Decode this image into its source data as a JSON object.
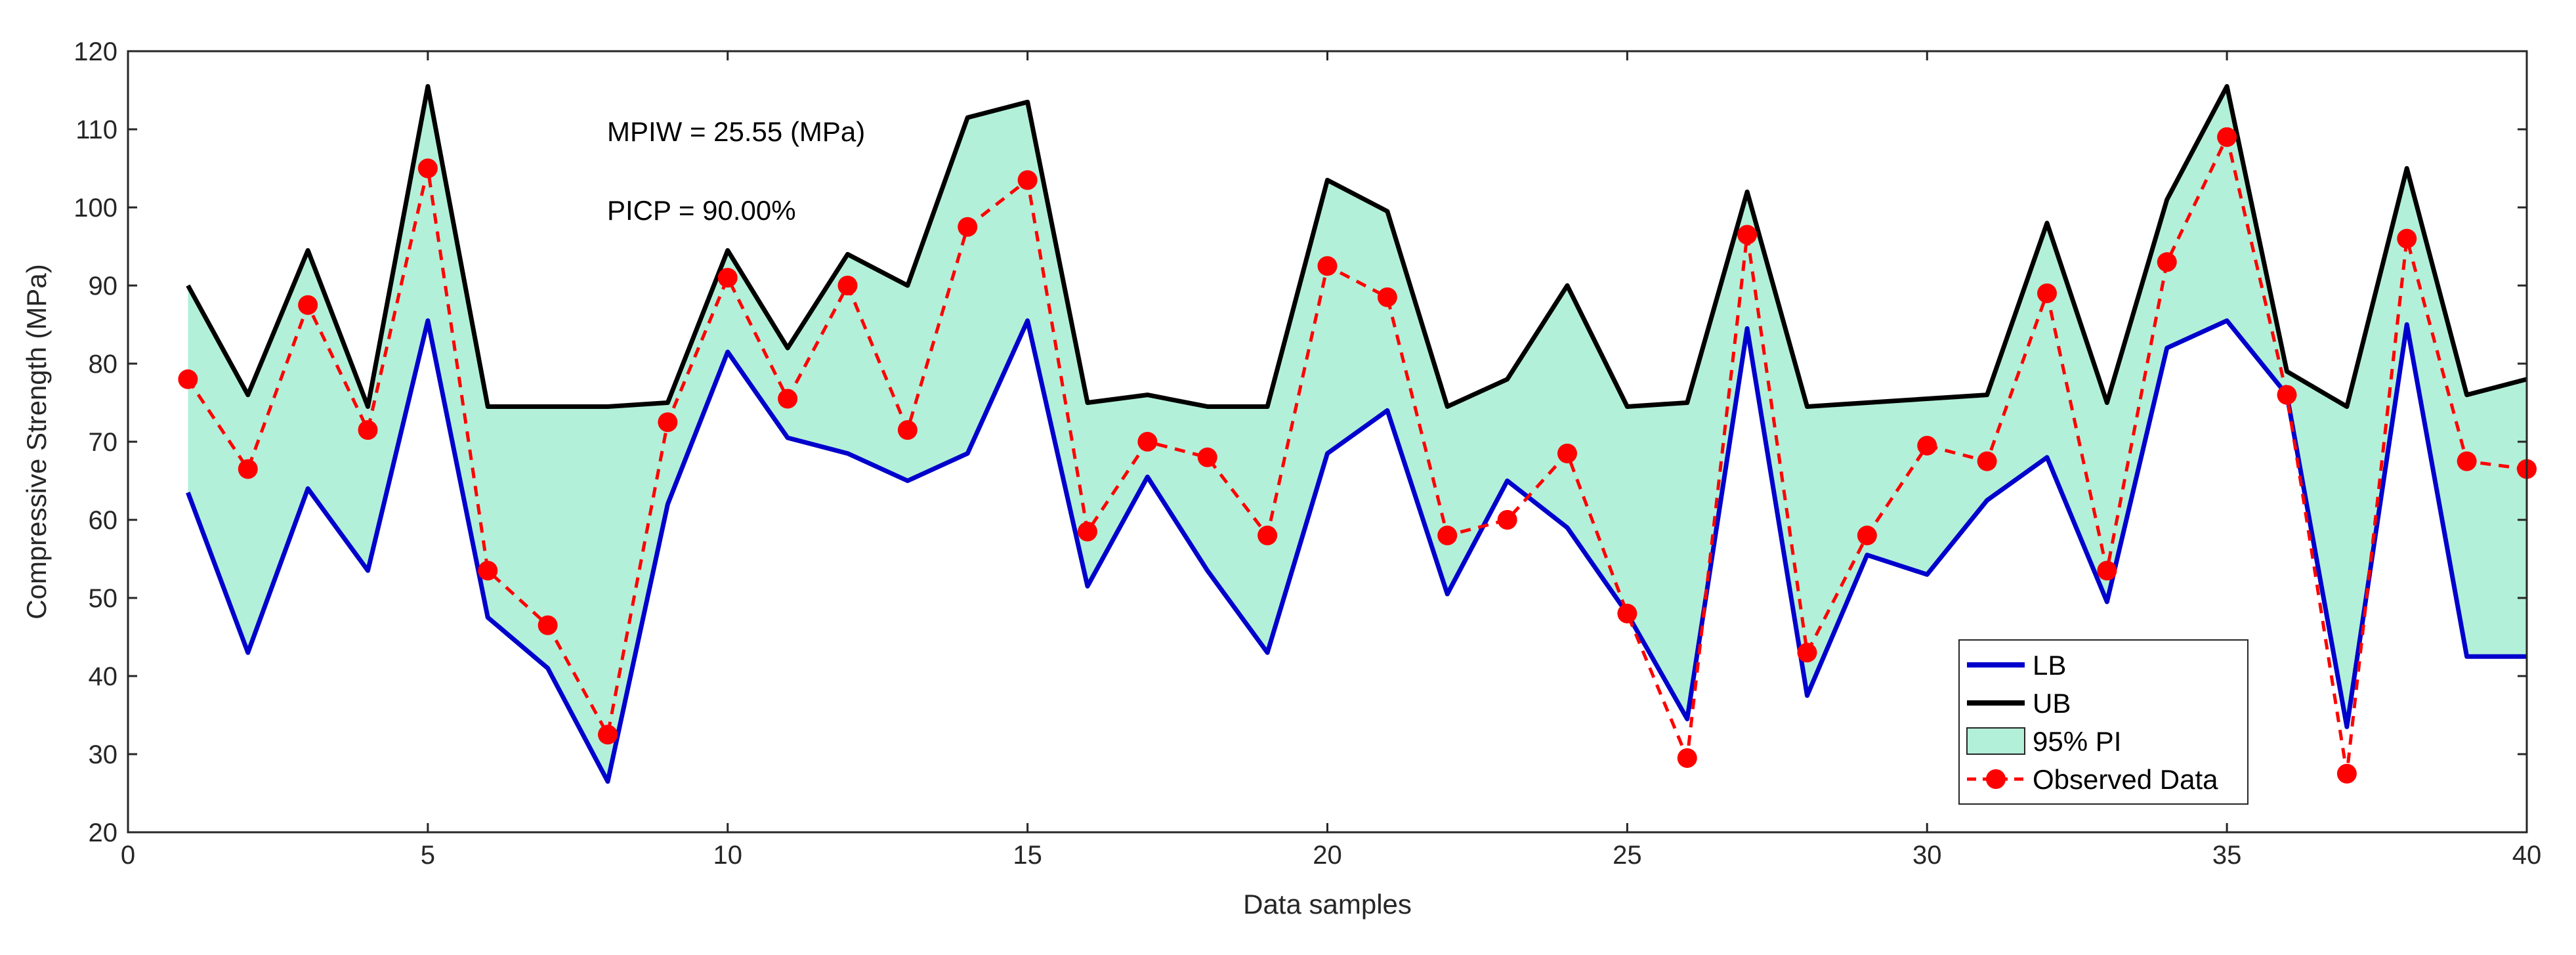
{
  "chart_data": {
    "type": "line",
    "title": "",
    "xlabel": "Data samples",
    "ylabel": "Compressive Strength (MPa)",
    "xlim": [
      0,
      40
    ],
    "ylim": [
      20,
      120
    ],
    "xticks": [
      0,
      5,
      10,
      15,
      20,
      25,
      30,
      35,
      40
    ],
    "yticks": [
      20,
      30,
      40,
      50,
      60,
      70,
      80,
      90,
      100,
      110,
      120
    ],
    "grid": false,
    "legend_position": "bottom-right",
    "x": [
      1,
      2,
      3,
      4,
      5,
      6,
      7,
      8,
      9,
      10,
      11,
      12,
      13,
      14,
      15,
      16,
      17,
      18,
      19,
      20,
      21,
      22,
      23,
      24,
      25,
      26,
      27,
      28,
      29,
      30,
      31,
      32,
      33,
      34,
      35,
      36,
      37,
      38,
      39,
      40
    ],
    "series": [
      {
        "name": "LB",
        "color": "#0000cc",
        "style": "solid",
        "values": [
          63.5,
          43,
          64,
          53.5,
          85.5,
          47.5,
          41,
          26.5,
          62,
          81.5,
          70.5,
          68.5,
          65,
          68.5,
          85.5,
          51.5,
          65.5,
          53.5,
          43,
          68.5,
          74,
          50.5,
          65,
          59,
          48,
          34.5,
          84.5,
          37.5,
          55.5,
          53,
          62.5,
          68,
          49.5,
          82,
          85.5,
          76,
          33.5,
          85,
          42.5,
          42.5
        ]
      },
      {
        "name": "UB",
        "color": "#000000",
        "style": "solid",
        "values": [
          90,
          76,
          94.5,
          74.5,
          115.5,
          74.5,
          74.5,
          74.5,
          75,
          94.5,
          82,
          94,
          90,
          111.5,
          113.5,
          75,
          76,
          74.5,
          74.5,
          103.5,
          99.5,
          74.5,
          78,
          90,
          74.5,
          75,
          102,
          74.5,
          75,
          75.5,
          76,
          98,
          75,
          101,
          115.5,
          79,
          74.5,
          105,
          76,
          78
        ]
      },
      {
        "name": "Observed Data",
        "color": "#ff0000",
        "style": "dashed-marker",
        "values": [
          78,
          66.5,
          87.5,
          71.5,
          105,
          53.5,
          46.5,
          32.5,
          72.5,
          91,
          75.5,
          90,
          71.5,
          97.5,
          103.5,
          58.5,
          70,
          68,
          58,
          92.5,
          88.5,
          58,
          60,
          68.5,
          48,
          29.5,
          96.5,
          43,
          58,
          69.5,
          67.5,
          89,
          53.5,
          93,
          109,
          76,
          27.5,
          96,
          67.5,
          66.5
        ]
      }
    ],
    "band": {
      "name": "95% PI",
      "lower": "LB",
      "upper": "UB",
      "color": "#b3f0d9"
    },
    "annotations": [
      "MPIW = 25.55 (MPa)",
      "PICP = 90.00%"
    ]
  }
}
